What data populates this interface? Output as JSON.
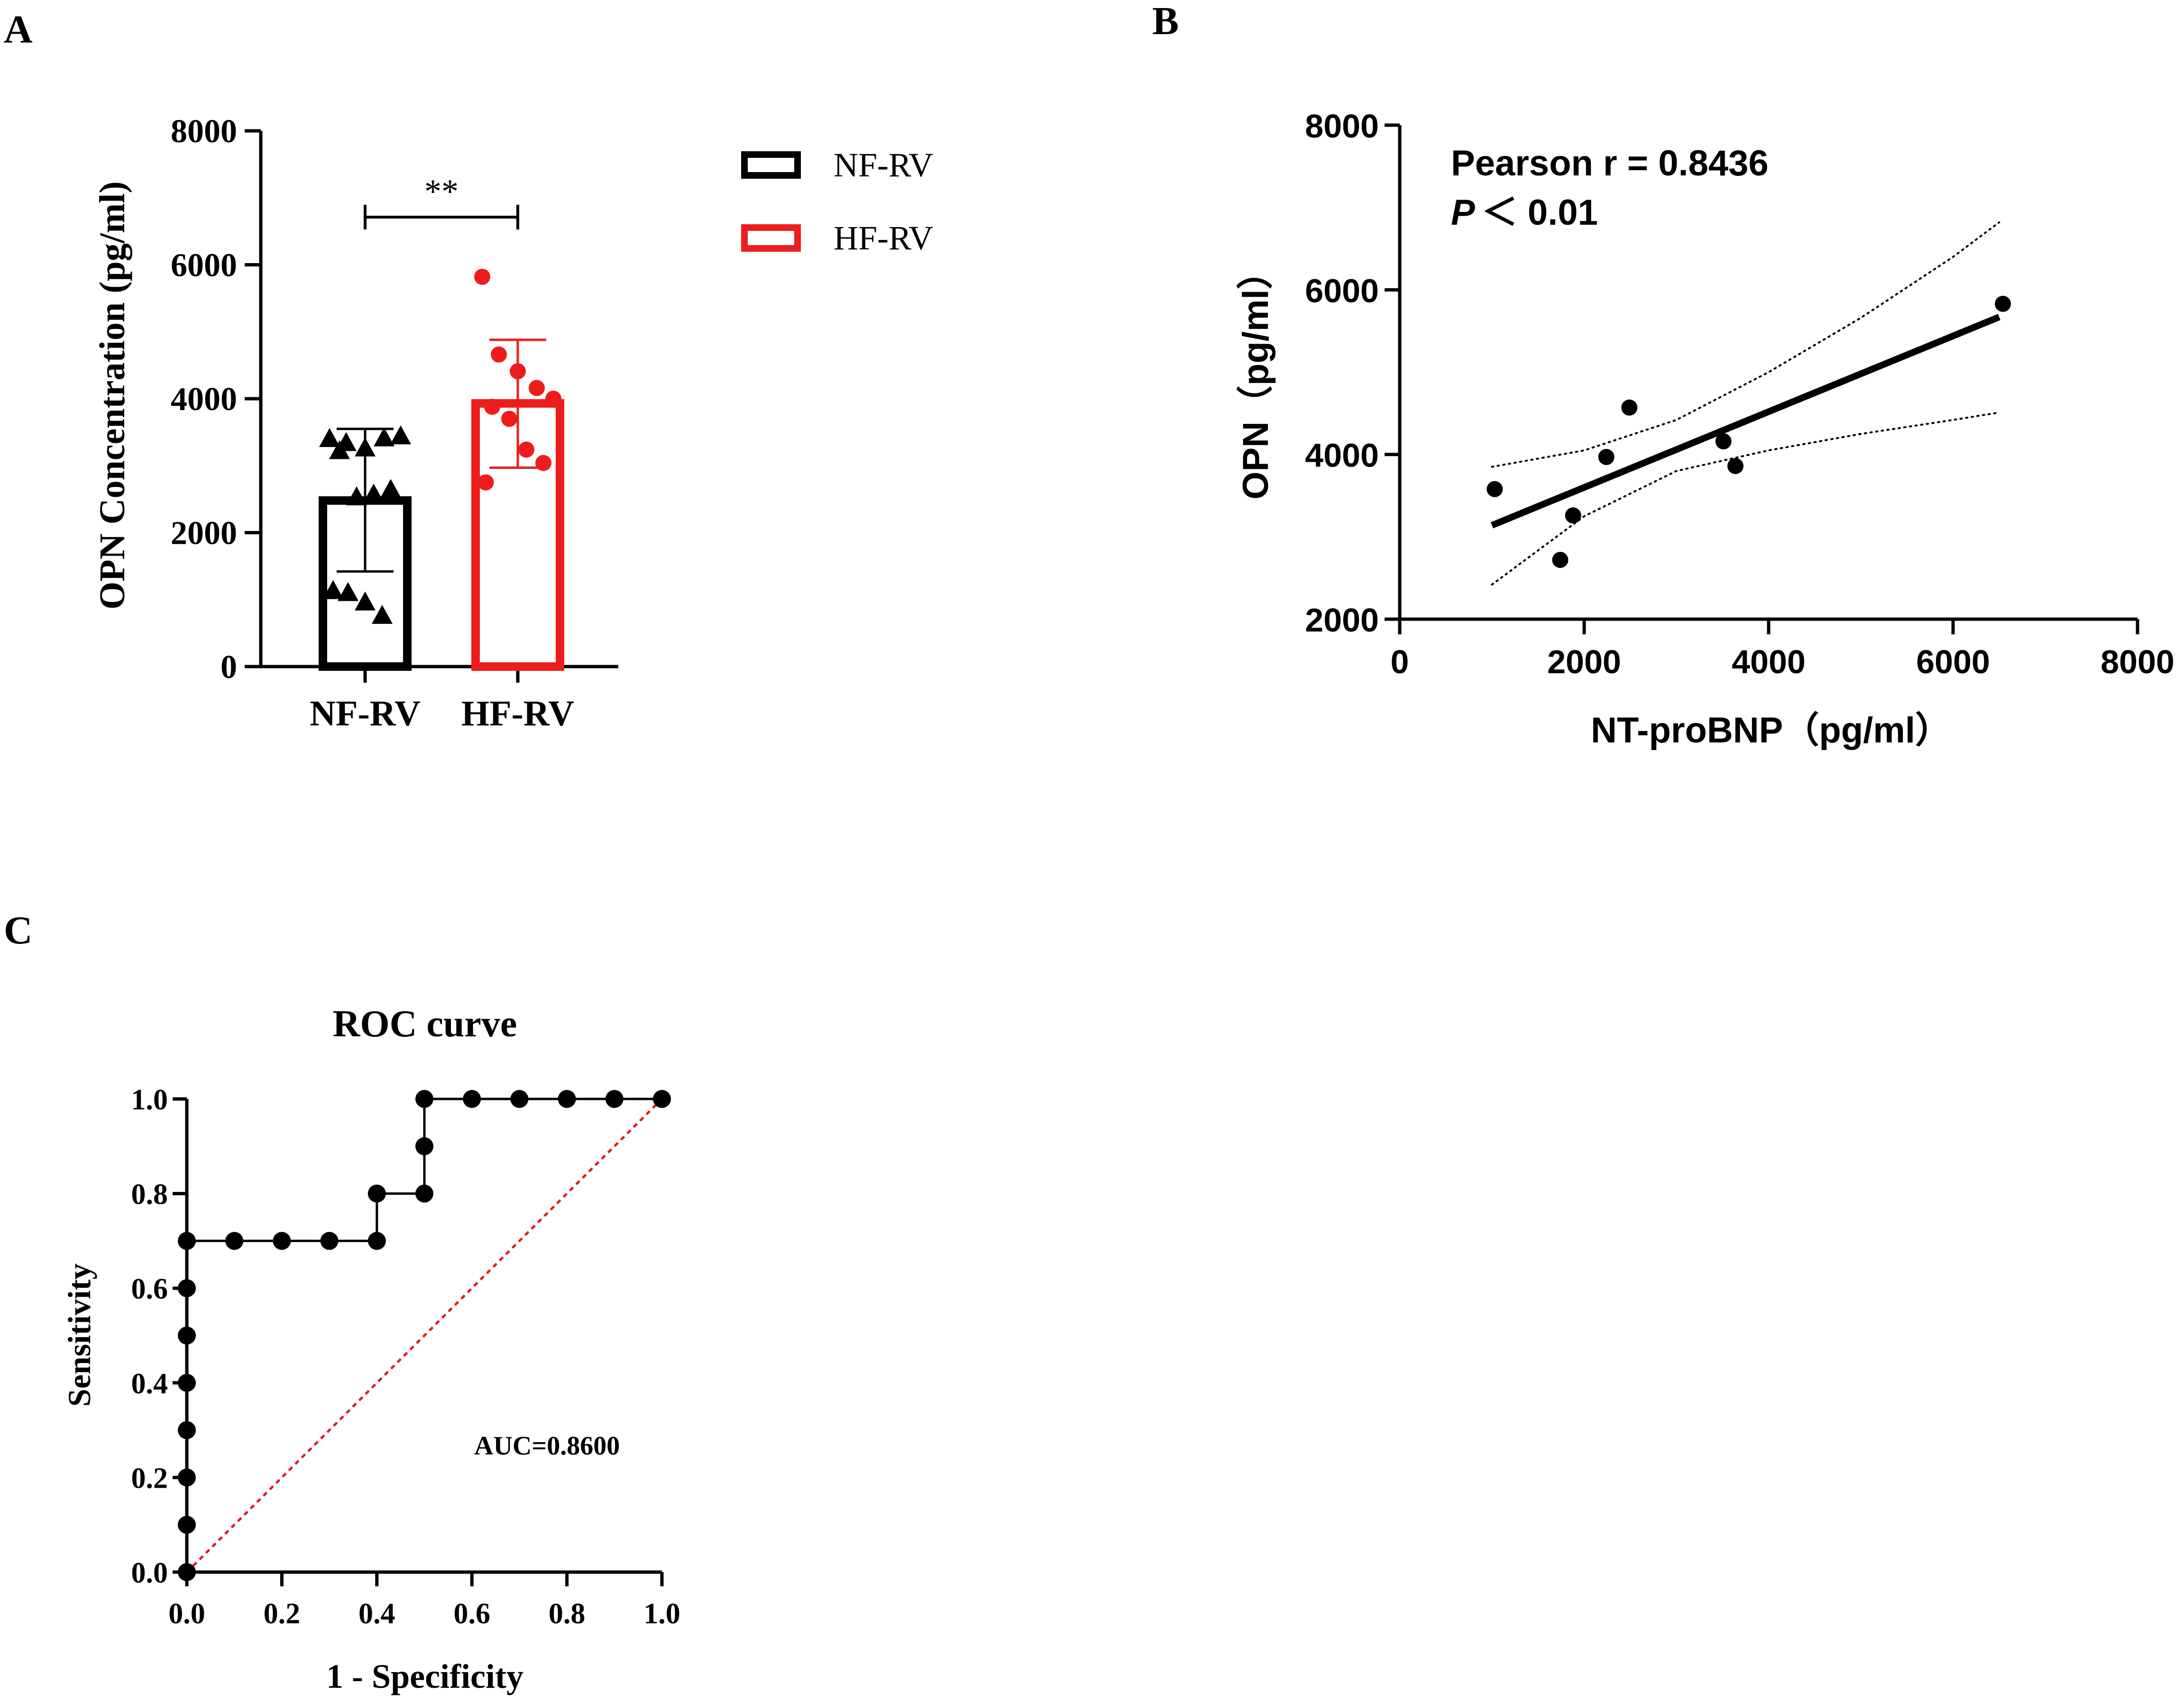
{
  "panels": {
    "a": "A",
    "b": "B",
    "c": "C"
  },
  "colors": {
    "nf": "#000000",
    "hf": "#ee1c1c",
    "diag": "#e31a1c"
  },
  "chart_data": [
    {
      "id": "A",
      "type": "bar",
      "title": "",
      "ylabel": "OPN Concentration (pg/ml)",
      "xlabel": "",
      "categories": [
        "NF-RV",
        "HF-RV"
      ],
      "ylim": [
        0,
        8000
      ],
      "yticks": [
        0,
        2000,
        4000,
        6000,
        8000
      ],
      "ytick_labels": [
        "0",
        "2000",
        "4000",
        "6000",
        "8000"
      ],
      "series": [
        {
          "name": "NF-RV",
          "mean": 2480,
          "sd_low": 1420,
          "sd_high": 3550,
          "marker": "triangle",
          "points": [
            3420,
            3360,
            3280,
            3430,
            3460,
            3240,
            2550,
            2590,
            2660,
            1150,
            1120,
            980,
            780
          ]
        },
        {
          "name": "HF-RV",
          "mean": 3930,
          "sd_low": 2970,
          "sd_high": 4880,
          "marker": "circle",
          "points": [
            5820,
            4660,
            4410,
            4160,
            4000,
            3880,
            3700,
            3240,
            3040,
            2750
          ]
        }
      ],
      "legend": [
        "NF-RV",
        "HF-RV"
      ],
      "legend_position": "right",
      "significance": "**"
    },
    {
      "id": "B",
      "type": "scatter",
      "xlabel": "NT-proBNP（pg/ml）",
      "ylabel": "OPN（pg/ml）",
      "xlim": [
        0,
        8000
      ],
      "ylim": [
        2000,
        8000
      ],
      "xticks": [
        0,
        2000,
        4000,
        6000,
        8000
      ],
      "xtick_labels": [
        "0",
        "2000",
        "4000",
        "6000",
        "8000"
      ],
      "yticks": [
        2000,
        4000,
        6000,
        8000
      ],
      "ytick_labels": [
        "2000",
        "4000",
        "6000",
        "8000"
      ],
      "points": [
        {
          "x": 1030,
          "y": 3580
        },
        {
          "x": 1740,
          "y": 2720
        },
        {
          "x": 1880,
          "y": 3260
        },
        {
          "x": 2240,
          "y": 3970
        },
        {
          "x": 2490,
          "y": 4570
        },
        {
          "x": 3510,
          "y": 4160
        },
        {
          "x": 3640,
          "y": 3860
        },
        {
          "x": 6540,
          "y": 5830
        }
      ],
      "fit": {
        "x": [
          1000,
          6500
        ],
        "y": [
          3140,
          5670
        ]
      },
      "ci_upper": {
        "x": [
          1000,
          2000,
          3000,
          4000,
          5000,
          6000,
          6500
        ],
        "y": [
          3850,
          4050,
          4420,
          5000,
          5660,
          6400,
          6820
        ]
      },
      "ci_lower": {
        "x": [
          1000,
          2000,
          3000,
          4000,
          5000,
          6000,
          6500
        ],
        "y": [
          2420,
          3250,
          3800,
          4050,
          4250,
          4420,
          4510
        ]
      },
      "annotation_r": "Pearson r = 0.8436",
      "annotation_p_letter": "P",
      "annotation_p_rest": "＜ 0.01"
    },
    {
      "id": "C",
      "type": "line",
      "title": "ROC curve",
      "xlabel": "1 - Specificity",
      "ylabel": "Sensitivity",
      "xlim": [
        0,
        1
      ],
      "ylim": [
        0,
        1
      ],
      "xticks": [
        0,
        0.2,
        0.4,
        0.6,
        0.8,
        1.0
      ],
      "xtick_labels": [
        "0.0",
        "0.2",
        "0.4",
        "0.6",
        "0.8",
        "1.0"
      ],
      "yticks": [
        0,
        0.2,
        0.4,
        0.6,
        0.8,
        1.0
      ],
      "ytick_labels": [
        "0.0",
        "0.2",
        "0.4",
        "0.6",
        "0.8",
        "1.0"
      ],
      "x": [
        0,
        0,
        0,
        0,
        0,
        0,
        0,
        0,
        0.1,
        0.2,
        0.3,
        0.4,
        0.4,
        0.5,
        0.5,
        0.5,
        0.6,
        0.7,
        0.8,
        0.9,
        1.0
      ],
      "y": [
        0,
        0.1,
        0.2,
        0.3,
        0.4,
        0.5,
        0.6,
        0.7,
        0.7,
        0.7,
        0.7,
        0.7,
        0.8,
        0.8,
        0.9,
        1.0,
        1.0,
        1.0,
        1.0,
        1.0,
        1.0
      ],
      "reference": {
        "x": [
          0,
          1
        ],
        "y": [
          0,
          1
        ]
      },
      "auc_label": "AUC=0.8600"
    }
  ]
}
